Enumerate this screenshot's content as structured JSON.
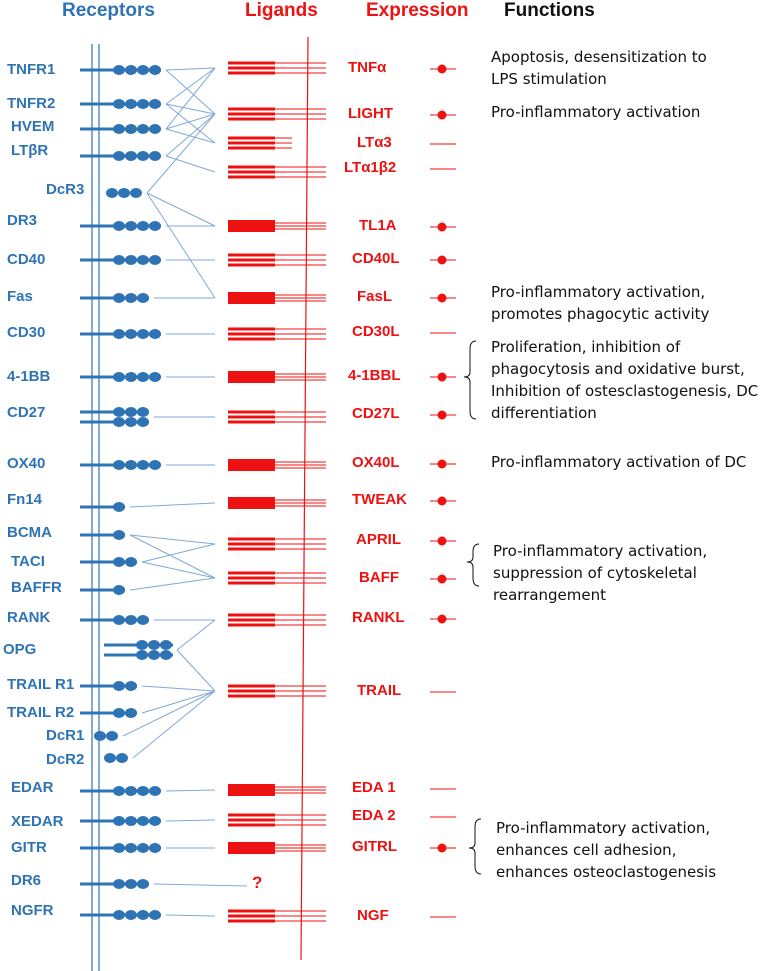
{
  "headers": {
    "receptors": "Receptors",
    "ligands": "Ligands",
    "expression": "Expression",
    "functions": "Functions"
  },
  "colors": {
    "receptor": "#2e74b5",
    "ligand": "#ee1111",
    "text": "#111111",
    "background": "#ffffff"
  },
  "receptors": [
    "TNFR1",
    "TNFR2",
    "HVEM",
    "LTβR",
    "DcR3",
    "DR3",
    "CD40",
    "Fas",
    "CD30",
    "4-1BB",
    "CD27",
    "OX40",
    "Fn14",
    "BCMA",
    "TACI",
    "BAFFR",
    "RANK",
    "OPG",
    "TRAIL R1",
    "TRAIL R2",
    "DcR1",
    "DcR2",
    "EDAR",
    "XEDAR",
    "GITR",
    "DR6",
    "NGFR"
  ],
  "ligands": [
    "TNFα",
    "LIGHT",
    "LTα3",
    "LTα1β2",
    "TL1A",
    "CD40L",
    "FasL",
    "CD30L",
    "4-1BBL",
    "CD27L",
    "OX40L",
    "TWEAK",
    "APRIL",
    "BAFF",
    "RANKL",
    "TRAIL",
    "EDA 1",
    "EDA 2",
    "GITRL",
    "NGF"
  ],
  "unknown_ligand": "?",
  "expression": {
    "detected": [
      "TNFα",
      "LIGHT",
      "TL1A",
      "CD40L",
      "FasL",
      "4-1BBL",
      "CD27L",
      "OX40L",
      "TWEAK",
      "APRIL",
      "BAFF",
      "RANKL",
      "GITRL"
    ],
    "not_detected": [
      "LTα3",
      "LTα1β2",
      "CD30L",
      "TRAIL",
      "EDA 1",
      "EDA 2",
      "NGF"
    ]
  },
  "interactions": [
    [
      "TNFR1",
      "TNFα"
    ],
    [
      "TNFR1",
      "LIGHT"
    ],
    [
      "TNFR2",
      "TNFα"
    ],
    [
      "TNFR2",
      "LIGHT"
    ],
    [
      "TNFR2",
      "LTα3"
    ],
    [
      "HVEM",
      "TNFα"
    ],
    [
      "HVEM",
      "LIGHT"
    ],
    [
      "HVEM",
      "LTα3"
    ],
    [
      "LTβR",
      "LIGHT"
    ],
    [
      "LTβR",
      "LTα1β2"
    ],
    [
      "DcR3",
      "LIGHT"
    ],
    [
      "DcR3",
      "TL1A"
    ],
    [
      "DcR3",
      "FasL"
    ],
    [
      "DR3",
      "TL1A"
    ],
    [
      "CD40",
      "CD40L"
    ],
    [
      "Fas",
      "FasL"
    ],
    [
      "CD30",
      "CD30L"
    ],
    [
      "4-1BB",
      "4-1BBL"
    ],
    [
      "CD27",
      "CD27L"
    ],
    [
      "OX40",
      "OX40L"
    ],
    [
      "Fn14",
      "TWEAK"
    ],
    [
      "BCMA",
      "APRIL"
    ],
    [
      "BCMA",
      "BAFF"
    ],
    [
      "TACI",
      "APRIL"
    ],
    [
      "TACI",
      "BAFF"
    ],
    [
      "BAFFR",
      "BAFF"
    ],
    [
      "RANK",
      "RANKL"
    ],
    [
      "OPG",
      "RANKL"
    ],
    [
      "OPG",
      "TRAIL"
    ],
    [
      "TRAIL R1",
      "TRAIL"
    ],
    [
      "TRAIL R2",
      "TRAIL"
    ],
    [
      "DcR1",
      "TRAIL"
    ],
    [
      "DcR2",
      "TRAIL"
    ],
    [
      "EDAR",
      "EDA 1"
    ],
    [
      "XEDAR",
      "EDA 2"
    ],
    [
      "GITR",
      "GITRL"
    ],
    [
      "DR6",
      "?"
    ],
    [
      "NGFR",
      "NGF"
    ]
  ],
  "functions": [
    {
      "lines": [
        "Apoptosis, desensitization to",
        "LPS stimulation"
      ]
    },
    {
      "lines": [
        "Pro-inflammatory activation"
      ]
    },
    {
      "lines": [
        "Pro-inflammatory activation,",
        "promotes phagocytic activity"
      ]
    },
    {
      "lines": [
        "Proliferation, inhibition of",
        "phagocytosis and oxidative burst,",
        "Inhibition of ostesclastogenesis, DC",
        "differentiation"
      ]
    },
    {
      "lines": [
        "Pro-inflammatory activation of DC"
      ]
    },
    {
      "lines": [
        "Pro-inflammatory activation,",
        "suppression of cytoskeletal",
        "rearrangement"
      ]
    },
    {
      "lines": [
        "Pro-inflammatory activation,",
        "enhances cell adhesion,",
        "enhances osteoclastogenesis"
      ]
    }
  ]
}
